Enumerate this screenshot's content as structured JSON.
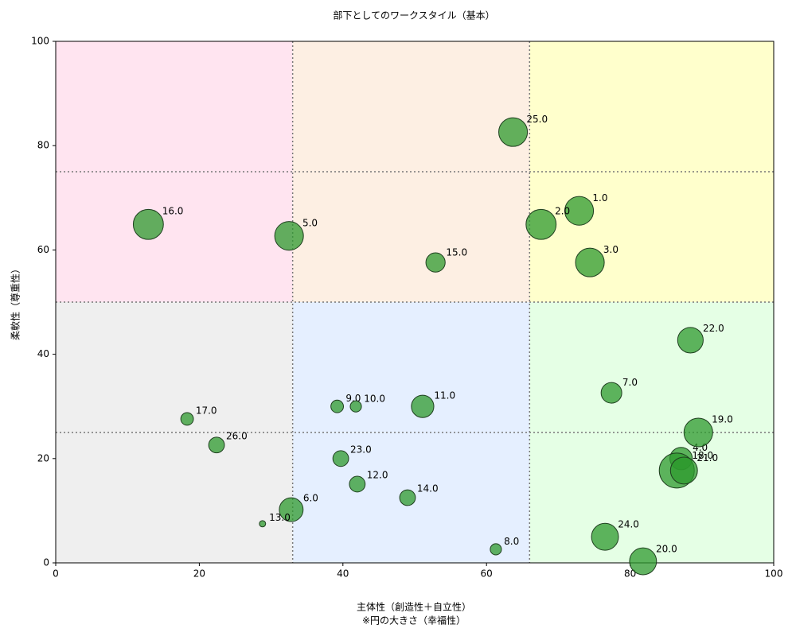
{
  "chart_data": {
    "type": "scatter",
    "title": "部下としてのワークスタイル（基本）",
    "xlabel": [
      "主体性（創造性＋自立性）",
      "※円の大きさ（幸福性）"
    ],
    "ylabel": "柔軟性（尊重性）",
    "xlim": [
      0,
      100
    ],
    "ylim": [
      0,
      100
    ],
    "xticks": [
      0,
      20,
      40,
      60,
      80,
      100
    ],
    "yticks": [
      0,
      20,
      40,
      60,
      80,
      100
    ],
    "vlines": [
      33,
      66
    ],
    "hlines": [
      25,
      50,
      75
    ],
    "regions": [
      {
        "x": [
          0,
          33
        ],
        "y": [
          50,
          100
        ],
        "color": "#ffe4f0"
      },
      {
        "x": [
          33,
          66
        ],
        "y": [
          50,
          100
        ],
        "color": "#fdefe3"
      },
      {
        "x": [
          66,
          100
        ],
        "y": [
          50,
          100
        ],
        "color": "#ffffcc"
      },
      {
        "x": [
          0,
          33
        ],
        "y": [
          0,
          50
        ],
        "color": "#efefef"
      },
      {
        "x": [
          33,
          66
        ],
        "y": [
          0,
          50
        ],
        "color": "#e5efff"
      },
      {
        "x": [
          66,
          100
        ],
        "y": [
          0,
          50
        ],
        "color": "#e5ffe5"
      }
    ],
    "color": "#2e9a2e",
    "labels": [
      "1.0",
      "2.0",
      "3.0",
      "4.0",
      "5.0",
      "6.0",
      "7.0",
      "8.0",
      "9.0",
      "10.0",
      "11.0",
      "12.0",
      "13.0",
      "14.0",
      "15.0",
      "16.0",
      "17.0",
      "18.0",
      "19.0",
      "20.0",
      "21.0",
      "22.0",
      "23.0",
      "24.0",
      "25.0",
      "26.0"
    ],
    "x": [
      72.9,
      67.6,
      74.4,
      87.1,
      32.5,
      32.8,
      77.4,
      61.3,
      39.2,
      41.8,
      51.1,
      42.0,
      28.8,
      49.0,
      52.9,
      12.9,
      18.3,
      86.5,
      89.5,
      81.8,
      87.5,
      88.4,
      39.7,
      76.5,
      63.7,
      22.4
    ],
    "values": [
      67.5,
      64.9,
      57.6,
      20.0,
      62.7,
      10.2,
      32.6,
      2.6,
      30.0,
      30.0,
      30.0,
      15.1,
      7.5,
      12.5,
      57.6,
      64.9,
      27.6,
      17.7,
      25.0,
      0.3,
      17.7,
      42.7,
      20.0,
      5.0,
      82.6,
      22.6
    ],
    "sizes": [
      8.2,
      8.6,
      8.2,
      6.4,
      8.2,
      6.8,
      5.9,
      3.2,
      3.6,
      3.2,
      6.4,
      4.5,
      1.8,
      4.5,
      5.5,
      8.6,
      3.6,
      10.0,
      8.2,
      7.7,
      7.7,
      7.3,
      4.5,
      7.7,
      8.2,
      4.5
    ]
  }
}
